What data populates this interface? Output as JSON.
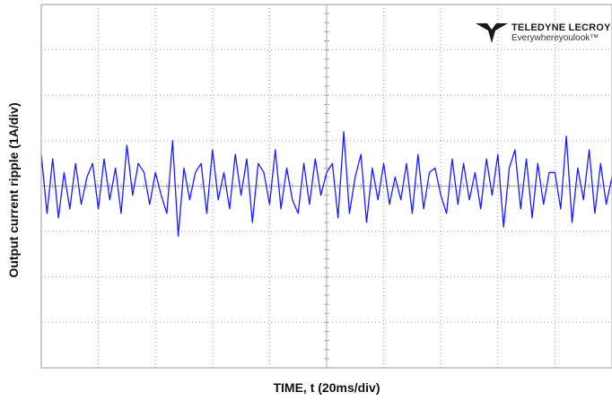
{
  "labels": {
    "ylabel": "Output current ripple  (1A/div)",
    "xlabel": "TIME, t (20ms/div)"
  },
  "logo": {
    "brand": "TELEDYNE LECROY",
    "tagline": "Everywhereyoulook™",
    "icon": "teledyne-lecroy-logo-icon"
  },
  "colors": {
    "trace": "#1a1aff",
    "grid": "#a8a8a8",
    "frame": "#9a9a9a"
  },
  "chart_data": {
    "type": "line",
    "xlabel": "TIME, t (20ms/div)",
    "ylabel": "Output current ripple  (1A/div)",
    "x_unit": "ms",
    "y_unit": "A",
    "xlim": [
      0,
      200
    ],
    "ylim": [
      -4,
      4
    ],
    "x_divisions": 10,
    "y_divisions": 8,
    "grid": true,
    "series": [
      {
        "x": [
          0,
          2,
          4,
          6,
          8,
          10,
          12,
          14,
          16,
          18,
          20,
          22,
          24,
          26,
          28,
          30,
          32,
          34,
          36,
          38,
          40,
          42,
          44,
          46,
          48,
          50,
          52,
          54,
          56,
          58,
          60,
          62,
          64,
          66,
          68,
          70,
          72,
          74,
          76,
          78,
          80,
          82,
          84,
          86,
          88,
          90,
          92,
          94,
          96,
          98,
          100,
          102,
          104,
          106,
          108,
          110,
          112,
          114,
          116,
          118,
          120,
          122,
          124,
          126,
          128,
          130,
          132,
          134,
          136,
          138,
          140,
          142,
          144,
          146,
          148,
          150,
          152,
          154,
          156,
          158,
          160,
          162,
          164,
          166,
          168,
          170,
          172,
          174,
          176,
          178,
          180,
          182,
          184,
          186,
          188,
          190,
          192,
          194,
          196,
          198,
          200
        ],
        "y": [
          0.7,
          -0.6,
          0.6,
          -0.7,
          0.3,
          -0.5,
          0.5,
          -0.4,
          0.2,
          0.5,
          -0.5,
          0.6,
          -0.3,
          0.4,
          -0.6,
          0.9,
          -0.2,
          0.5,
          0.3,
          -0.4,
          0.3,
          -0.2,
          -0.6,
          1.0,
          -1.1,
          0.4,
          -0.3,
          0.3,
          0.5,
          -0.6,
          0.8,
          -0.3,
          0.3,
          -0.5,
          0.7,
          -0.2,
          0.6,
          -0.8,
          0.5,
          0.3,
          -0.4,
          0.8,
          -0.5,
          0.4,
          -0.3,
          -0.6,
          0.5,
          -0.4,
          0.6,
          -0.2,
          0.3,
          0.5,
          -0.7,
          1.2,
          -0.6,
          0.2,
          0.7,
          -0.8,
          0.4,
          -0.3,
          0.5,
          -0.4,
          0.2,
          -0.3,
          0.5,
          -0.6,
          0.7,
          -0.5,
          0.3,
          0.4,
          -0.2,
          -0.6,
          0.6,
          -0.4,
          0.5,
          -0.3,
          0.3,
          -0.5,
          0.6,
          -0.2,
          0.7,
          -0.9,
          0.4,
          0.8,
          -0.5,
          0.6,
          -0.7,
          0.5,
          -0.4,
          0.3,
          0.3,
          -0.5,
          1.1,
          -0.8,
          0.4,
          -0.3,
          0.8,
          -0.6,
          0.5,
          -0.4,
          0.2
        ]
      }
    ]
  }
}
